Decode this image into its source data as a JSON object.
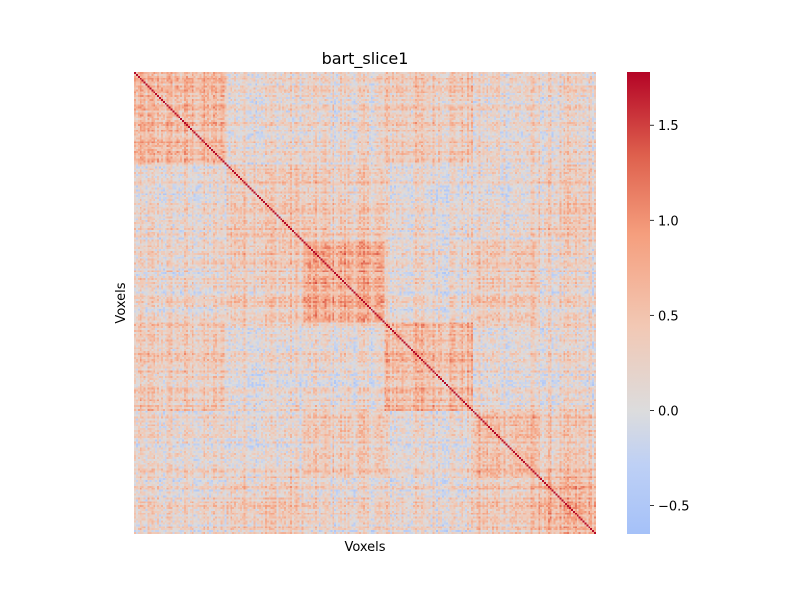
{
  "chart_data": {
    "type": "heatmap",
    "title": "bart_slice1",
    "xlabel": "Voxels",
    "ylabel": "Voxels",
    "grid": false,
    "matrix_size": 240,
    "symmetric": true,
    "diagonal_value": 1.75,
    "colormap": "coolwarm",
    "colorbar": {
      "min": -0.65,
      "max": 1.78,
      "ticks": [
        -0.5,
        0.0,
        0.5,
        1.0,
        1.5
      ],
      "tick_labels": [
        "−0.5",
        "0.0",
        "0.5",
        "1.0",
        "1.5"
      ]
    },
    "block_regions": [
      {
        "range": [
          0,
          48
        ],
        "mean": 0.55
      },
      {
        "range": [
          48,
          88
        ],
        "mean": 0.45
      },
      {
        "range": [
          88,
          130
        ],
        "mean": 0.7
      },
      {
        "range": [
          130,
          176
        ],
        "mean": 0.6
      },
      {
        "range": [
          176,
          210
        ],
        "mean": 0.55
      },
      {
        "range": [
          210,
          240
        ],
        "mean": 0.6
      }
    ],
    "background_mean": 0.15,
    "colors": {
      "low": "#a5c1f8",
      "mid": "#dcdcdd",
      "high": "#b40426"
    }
  }
}
